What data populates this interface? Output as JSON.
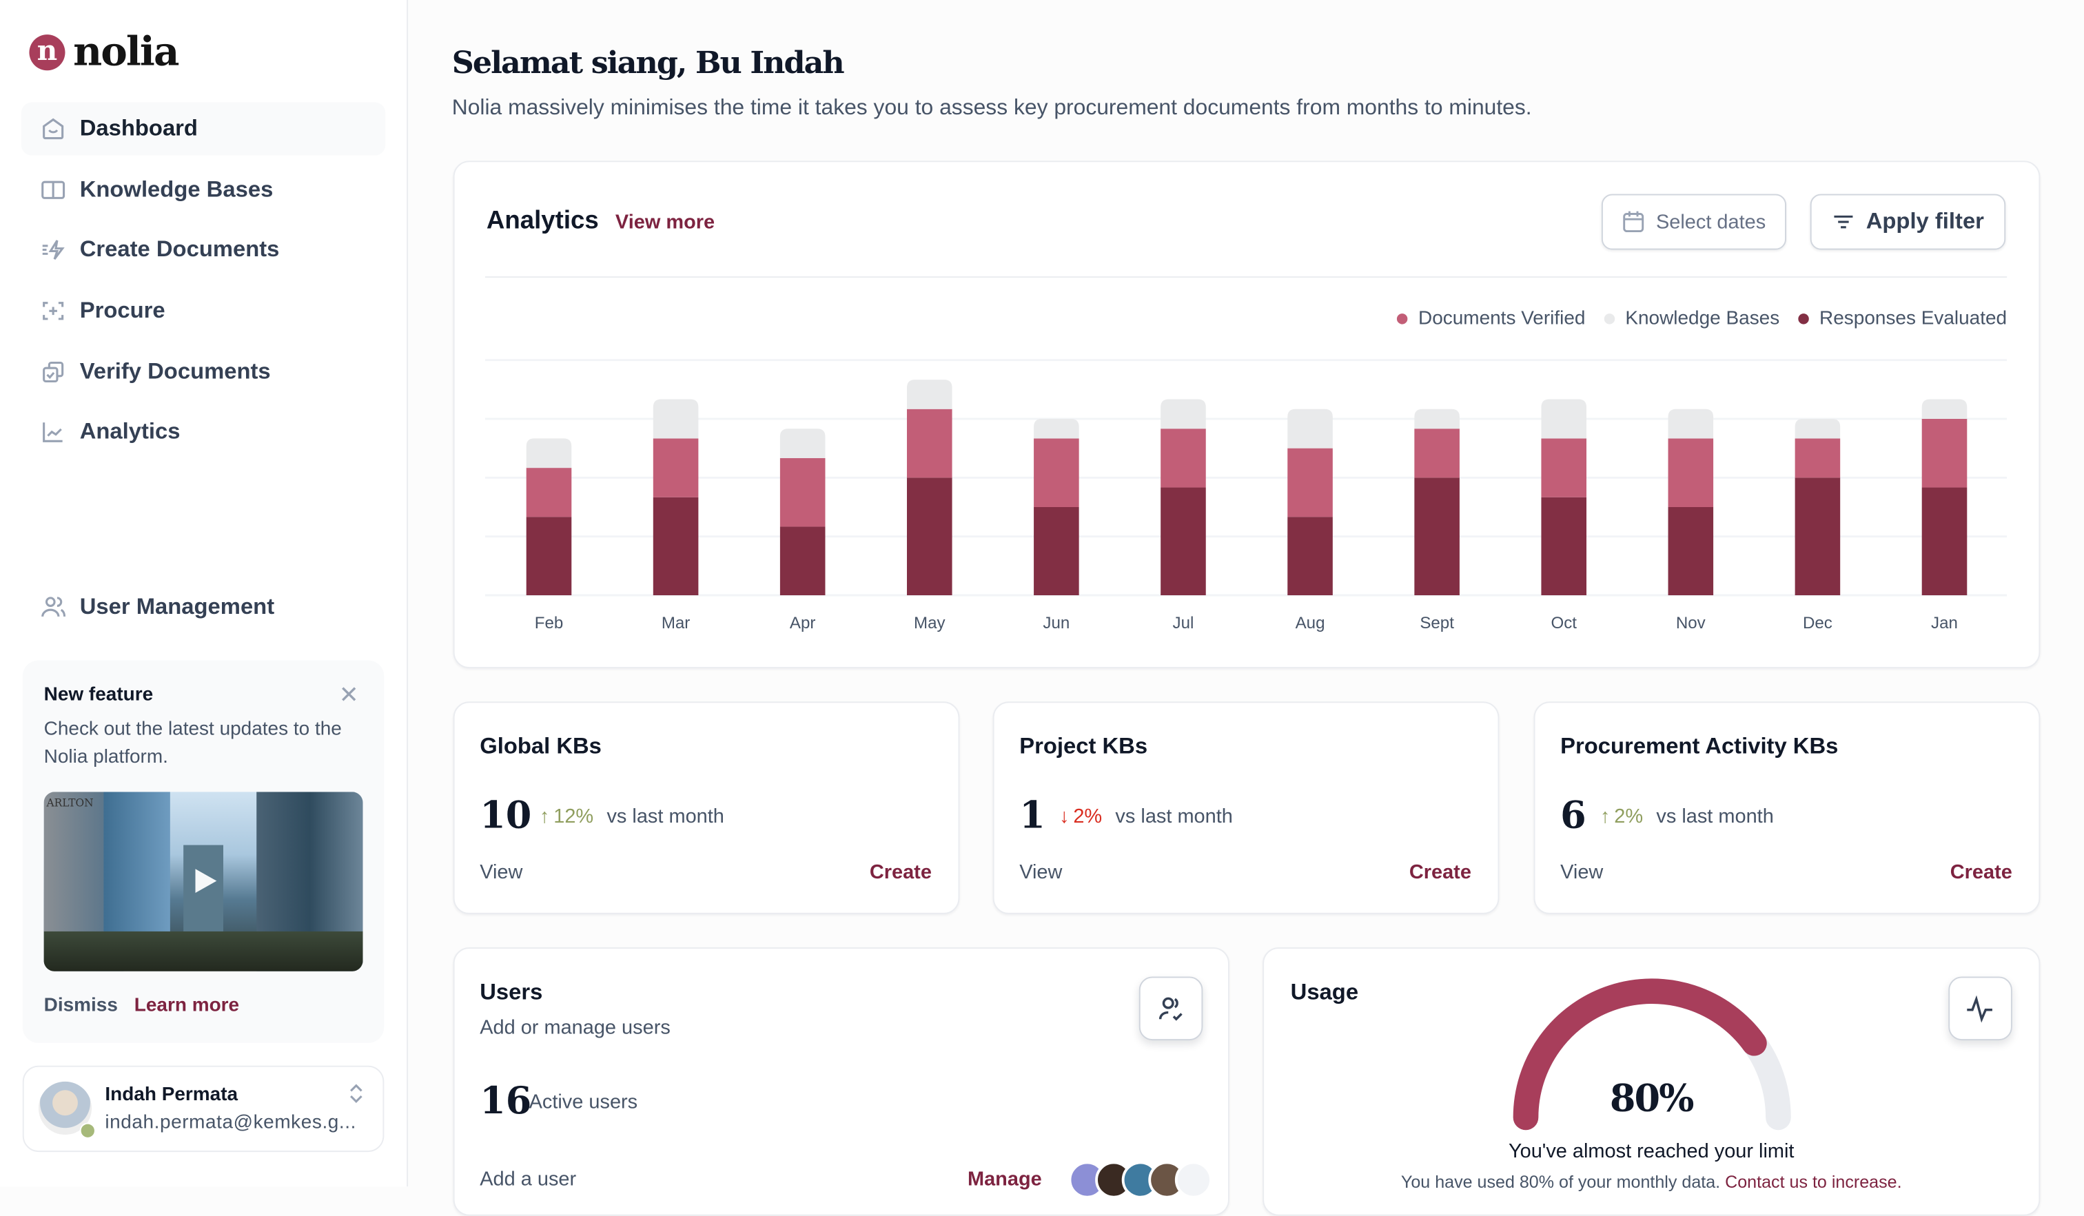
{
  "brand": {
    "logo_letter": "n",
    "name": "nolia",
    "accent": "#7d2340"
  },
  "sidebar": {
    "items": [
      {
        "label": "Dashboard",
        "icon": "home-icon",
        "active": true
      },
      {
        "label": "Knowledge Bases",
        "icon": "book-icon"
      },
      {
        "label": "Create Documents",
        "icon": "lightning-icon"
      },
      {
        "label": "Procure",
        "icon": "scan-plus-icon"
      },
      {
        "label": "Verify Documents",
        "icon": "copy-check-icon"
      },
      {
        "label": "Analytics",
        "icon": "line-chart-icon"
      }
    ],
    "user_management": {
      "label": "User Management",
      "icon": "users-icon"
    },
    "feature": {
      "title": "New feature",
      "body": "Check out the latest updates to the Nolia platform.",
      "image_sign": "ARLTON",
      "dismiss": "Dismiss",
      "learn_more": "Learn more"
    },
    "profile": {
      "name": "Indah Permata",
      "email": "indah.permata@kemkes.g...",
      "status": "online"
    }
  },
  "header": {
    "title": "Selamat siang, Bu Indah",
    "subtitle": "Nolia massively minimises the time it takes you to assess key procurement documents from months to minutes."
  },
  "analytics": {
    "title": "Analytics",
    "view_more": "View more",
    "select_dates": "Select dates",
    "apply_filter": "Apply filter"
  },
  "chart_data": {
    "type": "bar",
    "stacked": true,
    "categories": [
      "Feb",
      "Mar",
      "Apr",
      "May",
      "Jun",
      "Jul",
      "Aug",
      "Sept",
      "Oct",
      "Nov",
      "Dec",
      "Jan"
    ],
    "series": [
      {
        "name": "Responses Evaluated",
        "color": "#822f44",
        "values": [
          8,
          10,
          7,
          12,
          9,
          11,
          8,
          12,
          10,
          9,
          12,
          11
        ]
      },
      {
        "name": "Documents Verified",
        "color": "#c25e77",
        "values": [
          5,
          6,
          7,
          7,
          7,
          6,
          7,
          5,
          6,
          7,
          4,
          7
        ]
      },
      {
        "name": "Knowledge Bases",
        "color": "#e9eaeb",
        "values": [
          3,
          4,
          3,
          3,
          2,
          3,
          4,
          2,
          4,
          3,
          2,
          2
        ]
      }
    ],
    "legend_order": [
      "Documents Verified",
      "Knowledge Bases",
      "Responses Evaluated"
    ],
    "ylim": [
      0,
      24
    ],
    "grid": true,
    "legend": "top-right"
  },
  "kb_cards": [
    {
      "title": "Global KBs",
      "value": "10",
      "change": "12%",
      "direction": "up",
      "vs": "vs last month",
      "view": "View",
      "create": "Create"
    },
    {
      "title": "Project KBs",
      "value": "1",
      "change": "2%",
      "direction": "down",
      "vs": "vs last month",
      "view": "View",
      "create": "Create"
    },
    {
      "title": "Procurement Activity KBs",
      "value": "6",
      "change": "2%",
      "direction": "up",
      "vs": "vs last month",
      "view": "View",
      "create": "Create"
    }
  ],
  "colors": {
    "up": "#8f9e5e",
    "down": "#d92d20"
  },
  "users": {
    "title": "Users",
    "subtitle": "Add or manage users",
    "count": "16",
    "count_label": "Active users",
    "add": "Add a user",
    "manage": "Manage"
  },
  "usage": {
    "title": "Usage",
    "percent": 80,
    "percent_label": "80%",
    "headline": "You've almost reached your limit",
    "body": "You have used 80% of your monthly data.",
    "link": "Contact us to increase."
  }
}
